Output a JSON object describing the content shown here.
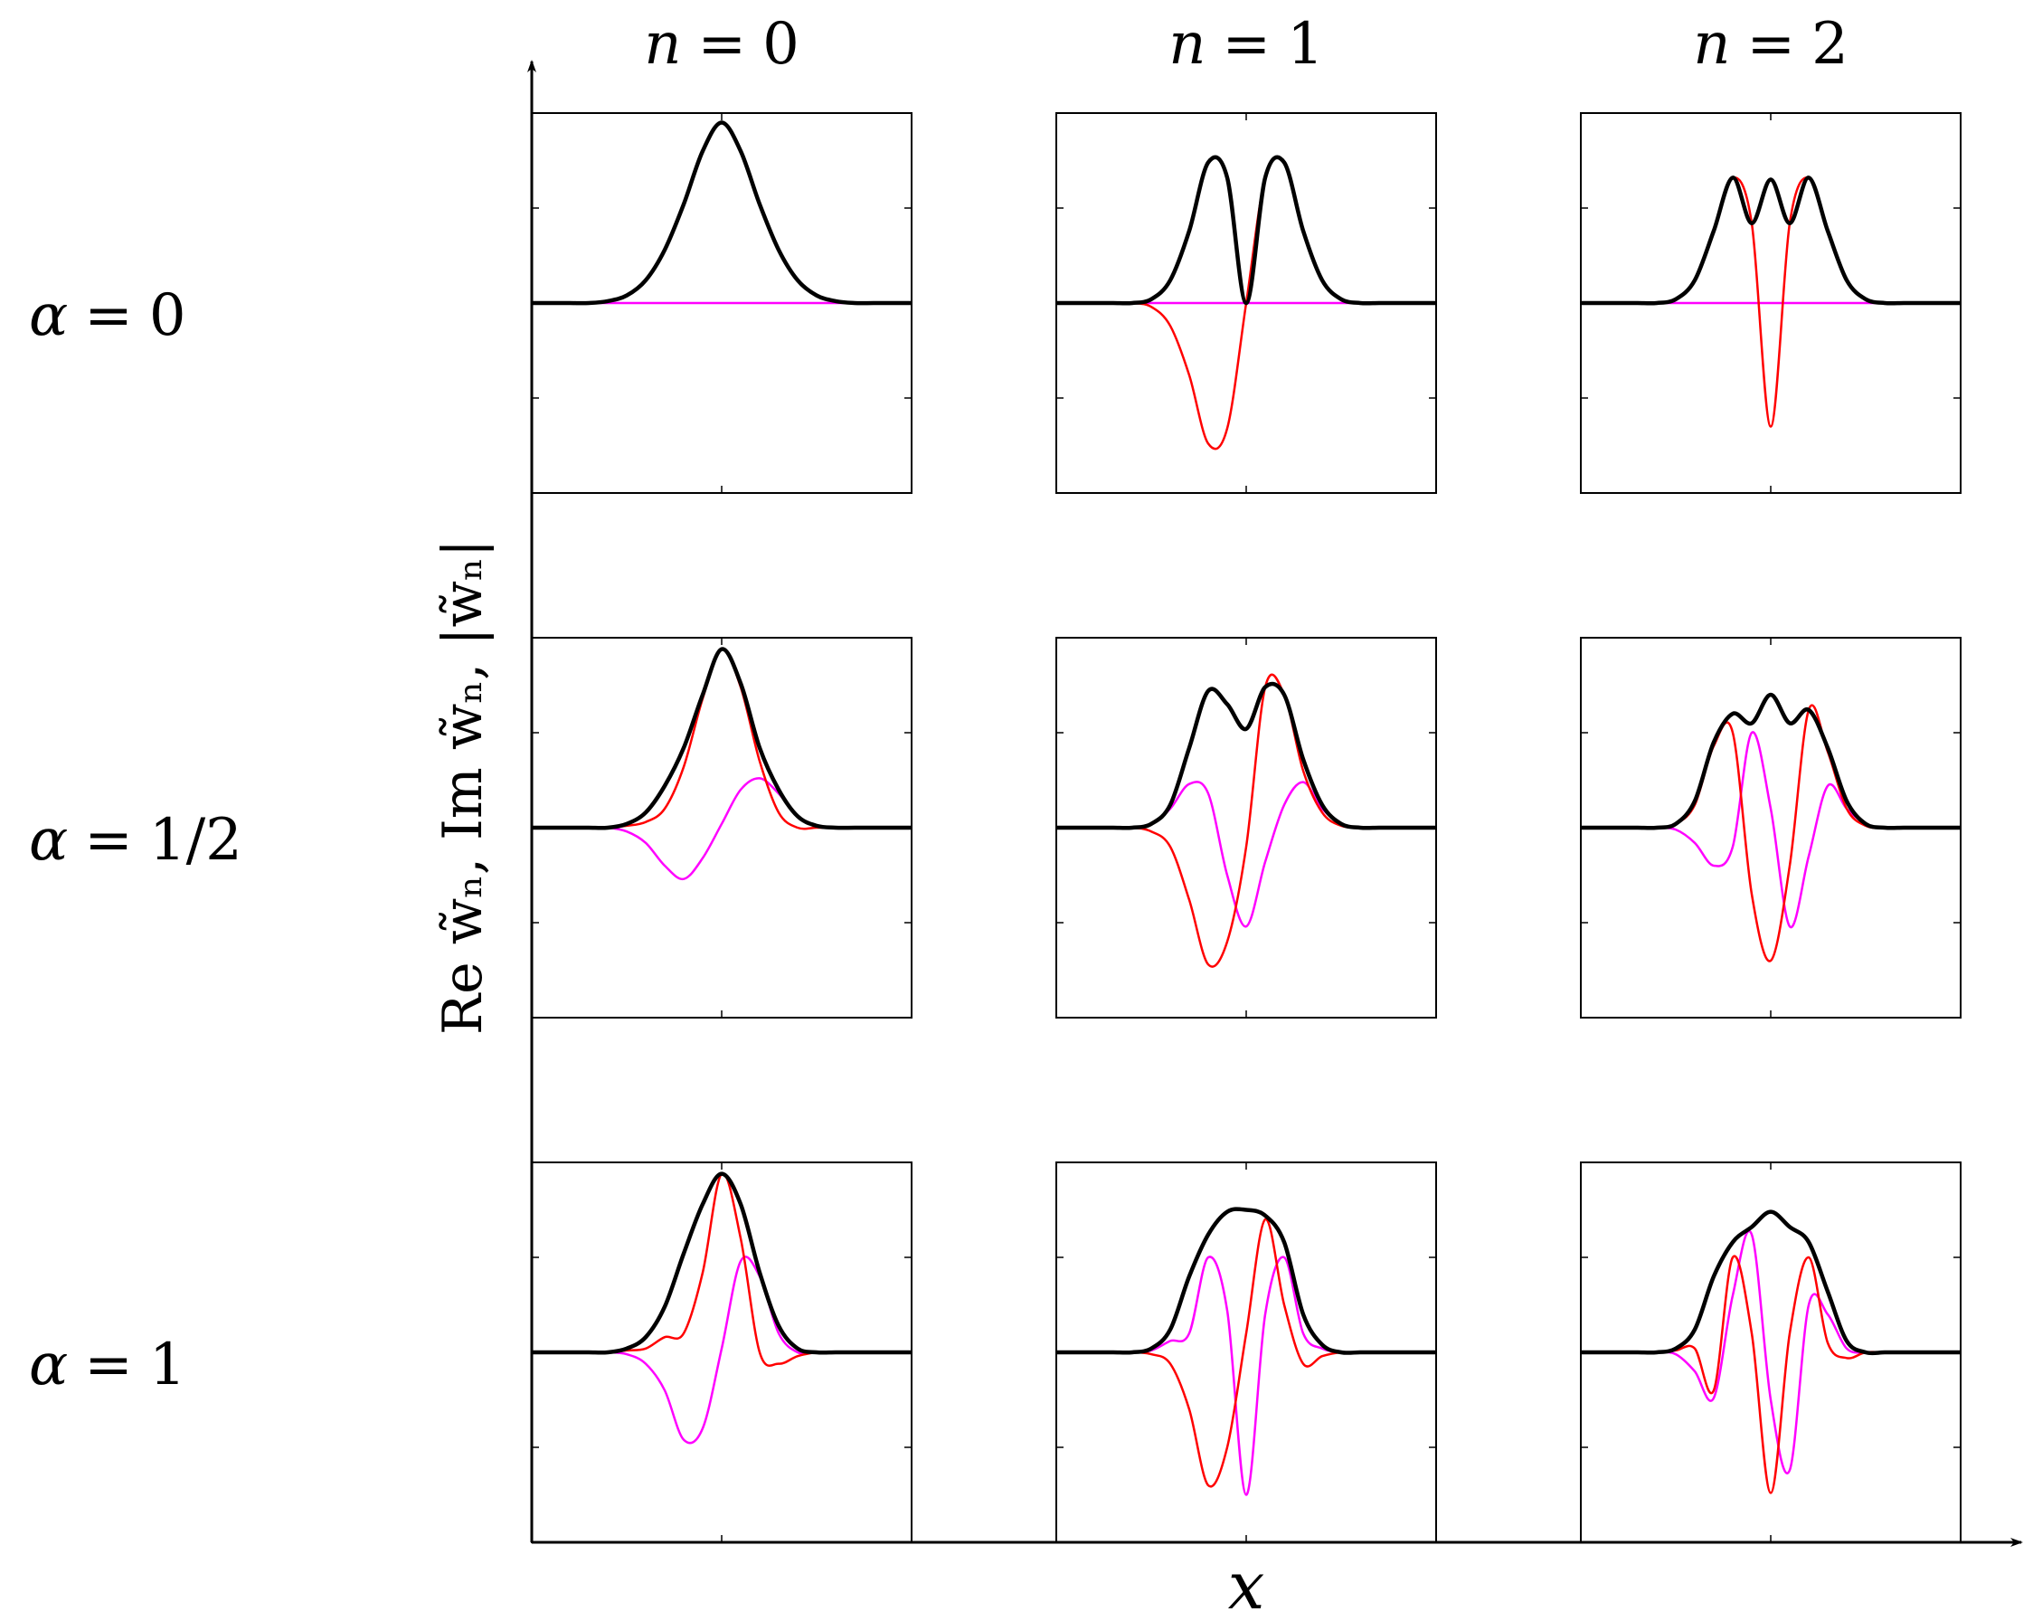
{
  "figure": {
    "columns": [
      {
        "var": "n",
        "eq": "=",
        "val": "0"
      },
      {
        "var": "n",
        "eq": "=",
        "val": "1"
      },
      {
        "var": "n",
        "eq": "=",
        "val": "2"
      }
    ],
    "rows": [
      {
        "var": "α",
        "eq": "=",
        "val": "0"
      },
      {
        "var": "α",
        "eq": "=",
        "val": "1/2"
      },
      {
        "var": "α",
        "eq": "=",
        "val": "1"
      }
    ],
    "ylabel": "Re w̃ₙ, Im w̃ₙ, |w̃ₙ|",
    "xlabel": "x"
  },
  "colors": {
    "re": "#ff0000",
    "im": "#ff00ff",
    "abs": "#000000"
  },
  "chart_data": {
    "type": "line",
    "title": "",
    "xlabel": "x",
    "ylabel": "Re w̃ₙ, Im w̃ₙ, |w̃ₙ|",
    "grid": false,
    "x_range": [
      -5,
      5
    ],
    "ylim": [
      -1.0,
      1.0
    ],
    "sample_step": 0.5,
    "series_legend": [
      "Re w̃ₙ (red)",
      "Im w̃ₙ (magenta)",
      "|w̃ₙ| (black)"
    ],
    "panels": [
      {
        "alpha": "0",
        "n": 0,
        "re": [
          0,
          0,
          0,
          0,
          0.01,
          0.04,
          0.12,
          0.28,
          0.52,
          0.8,
          0.95,
          0.8,
          0.52,
          0.28,
          0.12,
          0.04,
          0.01,
          0,
          0,
          0,
          0
        ],
        "im": [
          0,
          0,
          0,
          0,
          0,
          0,
          0,
          0,
          0,
          0,
          0,
          0,
          0,
          0,
          0,
          0,
          0,
          0,
          0,
          0,
          0
        ],
        "abs": [
          0,
          0,
          0,
          0,
          0.01,
          0.04,
          0.12,
          0.28,
          0.52,
          0.8,
          0.95,
          0.8,
          0.52,
          0.28,
          0.12,
          0.04,
          0.01,
          0,
          0,
          0,
          0
        ]
      },
      {
        "alpha": "0",
        "n": 1,
        "re": [
          0,
          0,
          0,
          0,
          0,
          -0.02,
          -0.12,
          -0.38,
          -0.74,
          -0.66,
          0,
          0.66,
          0.74,
          0.38,
          0.12,
          0.02,
          0,
          0,
          0,
          0,
          0
        ],
        "im": [
          0,
          0,
          0,
          0,
          0,
          0,
          0,
          0,
          0,
          0,
          0,
          0,
          0,
          0,
          0,
          0,
          0,
          0,
          0,
          0,
          0
        ],
        "abs": [
          0,
          0,
          0,
          0,
          0,
          0.02,
          0.12,
          0.38,
          0.74,
          0.66,
          0,
          0.66,
          0.74,
          0.38,
          0.12,
          0.02,
          0,
          0,
          0,
          0,
          0
        ]
      },
      {
        "alpha": "0",
        "n": 2,
        "re": [
          0,
          0,
          0,
          0,
          0,
          0.02,
          0.12,
          0.38,
          0.66,
          0.42,
          -0.65,
          0.42,
          0.66,
          0.38,
          0.12,
          0.02,
          0,
          0,
          0,
          0,
          0
        ],
        "im": [
          0,
          0,
          0,
          0,
          0,
          0,
          0,
          0,
          0,
          0,
          0,
          0,
          0,
          0,
          0,
          0,
          0,
          0,
          0,
          0,
          0
        ],
        "abs": [
          0,
          0,
          0,
          0,
          0,
          0.02,
          0.12,
          0.38,
          0.66,
          0.42,
          0.65,
          0.42,
          0.66,
          0.38,
          0.12,
          0.02,
          0,
          0,
          0,
          0,
          0
        ]
      },
      {
        "alpha": "1/2",
        "n": 0,
        "re": [
          0,
          0,
          0,
          0,
          0,
          0.01,
          0.03,
          0.1,
          0.32,
          0.68,
          0.94,
          0.74,
          0.35,
          0.08,
          0.0,
          0.0,
          0,
          0,
          0,
          0,
          0
        ],
        "im": [
          0,
          0,
          0,
          0,
          0,
          -0.02,
          -0.08,
          -0.2,
          -0.27,
          -0.16,
          0.02,
          0.2,
          0.26,
          0.18,
          0.06,
          0.01,
          0,
          0,
          0,
          0,
          0
        ],
        "abs": [
          0,
          0,
          0,
          0,
          0,
          0.02,
          0.08,
          0.22,
          0.42,
          0.7,
          0.94,
          0.76,
          0.42,
          0.2,
          0.06,
          0.01,
          0,
          0,
          0,
          0,
          0
        ]
      },
      {
        "alpha": "1/2",
        "n": 1,
        "re": [
          0,
          0,
          0,
          0,
          0,
          -0.02,
          -0.1,
          -0.38,
          -0.72,
          -0.6,
          -0.1,
          0.74,
          0.7,
          0.3,
          0.08,
          0.01,
          0,
          0,
          0,
          0,
          0
        ],
        "im": [
          0,
          0,
          0,
          0,
          0,
          0.02,
          0.1,
          0.23,
          0.18,
          -0.25,
          -0.52,
          -0.18,
          0.12,
          0.24,
          0.1,
          0.02,
          0,
          0,
          0,
          0,
          0
        ],
        "abs": [
          0,
          0,
          0,
          0,
          0,
          0.02,
          0.12,
          0.42,
          0.72,
          0.65,
          0.52,
          0.74,
          0.7,
          0.36,
          0.12,
          0.02,
          0,
          0,
          0,
          0,
          0
        ]
      },
      {
        "alpha": "1/2",
        "n": 2,
        "re": [
          0,
          0,
          0,
          0,
          0,
          0.02,
          0.12,
          0.43,
          0.5,
          -0.35,
          -0.7,
          -0.2,
          0.62,
          0.4,
          0.1,
          0.01,
          0,
          0,
          0,
          0,
          0
        ],
        "im": [
          0,
          0,
          0,
          0,
          0,
          -0.01,
          -0.08,
          -0.2,
          -0.1,
          0.5,
          0.1,
          -0.52,
          -0.15,
          0.22,
          0.1,
          0.02,
          0,
          0,
          0,
          0,
          0
        ],
        "abs": [
          0,
          0,
          0,
          0,
          0,
          0.02,
          0.14,
          0.45,
          0.6,
          0.55,
          0.7,
          0.55,
          0.62,
          0.42,
          0.14,
          0.02,
          0,
          0,
          0,
          0,
          0
        ]
      },
      {
        "alpha": "1",
        "n": 0,
        "re": [
          0,
          0,
          0,
          0,
          0,
          0.01,
          0.02,
          0.08,
          0.1,
          0.42,
          0.94,
          0.6,
          0.0,
          -0.06,
          -0.02,
          0,
          0,
          0,
          0,
          0,
          0
        ],
        "im": [
          0,
          0,
          0,
          0,
          0,
          -0.01,
          -0.06,
          -0.2,
          -0.46,
          -0.4,
          0.02,
          0.48,
          0.4,
          0.1,
          0.0,
          0,
          0,
          0,
          0,
          0,
          0
        ],
        "abs": [
          0,
          0,
          0,
          0,
          0,
          0.02,
          0.08,
          0.24,
          0.52,
          0.78,
          0.94,
          0.78,
          0.42,
          0.14,
          0.02,
          0,
          0,
          0,
          0,
          0,
          0
        ]
      },
      {
        "alpha": "1",
        "n": 1,
        "re": [
          0,
          0,
          0,
          0,
          0,
          -0.01,
          -0.06,
          -0.3,
          -0.7,
          -0.5,
          0.1,
          0.7,
          0.25,
          -0.06,
          -0.02,
          0,
          0,
          0,
          0,
          0,
          0
        ],
        "im": [
          0,
          0,
          0,
          0,
          0,
          0.01,
          0.06,
          0.1,
          0.5,
          0.22,
          -0.75,
          0.2,
          0.5,
          0.1,
          0.02,
          0,
          0,
          0,
          0,
          0,
          0
        ],
        "abs": [
          0,
          0,
          0,
          0,
          0,
          0.02,
          0.12,
          0.4,
          0.62,
          0.74,
          0.75,
          0.72,
          0.58,
          0.2,
          0.04,
          0,
          0,
          0,
          0,
          0,
          0
        ]
      },
      {
        "alpha": "1",
        "n": 2,
        "re": [
          0,
          0,
          0,
          0,
          0,
          0.01,
          0.02,
          -0.2,
          0.5,
          0.1,
          -0.74,
          0.1,
          0.5,
          0.05,
          -0.03,
          0,
          0,
          0,
          0,
          0,
          0
        ],
        "im": [
          0,
          0,
          0,
          0,
          0,
          -0.01,
          -0.1,
          -0.24,
          0.3,
          0.62,
          -0.25,
          -0.62,
          0.25,
          0.2,
          0.02,
          0,
          0,
          0,
          0,
          0,
          0
        ],
        "abs": [
          0,
          0,
          0,
          0,
          0,
          0.02,
          0.12,
          0.4,
          0.58,
          0.66,
          0.74,
          0.66,
          0.58,
          0.32,
          0.06,
          0,
          0,
          0,
          0,
          0,
          0
        ]
      }
    ]
  }
}
